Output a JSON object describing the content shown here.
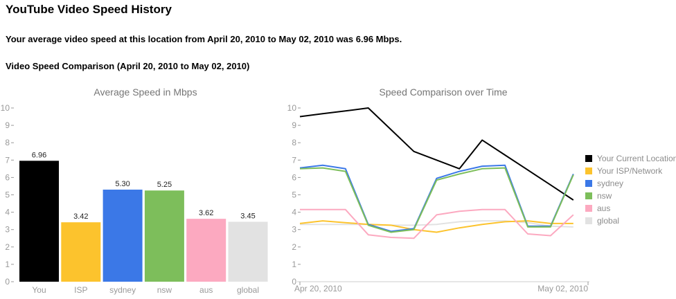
{
  "header": {
    "title": "YouTube Video Speed History",
    "summary": "Your average video speed at this location from April 20, 2010 to May 02, 2010 was 6.96 Mbps.",
    "section_heading": "Video Speed Comparison (April 20, 2010 to May 02, 2010)"
  },
  "colors": {
    "you": "#000000",
    "isp": "#FCC32D",
    "sydney": "#3B78E7",
    "nsw": "#7DBE5B",
    "aus": "#FCA9C0",
    "global": "#E2E2E2",
    "axis_text": "#999999",
    "axis_line": "#CCCCCC",
    "chart_title_text": "#757575",
    "legend_text": "#8C8C8C",
    "bar_value_text": "#222222"
  },
  "chart_data": [
    {
      "type": "bar",
      "title": "Average Speed in Mbps",
      "categories": [
        "You",
        "ISP",
        "sydney",
        "nsw",
        "aus",
        "global"
      ],
      "values": [
        6.96,
        3.42,
        5.3,
        5.25,
        3.62,
        3.45
      ],
      "data_labels": [
        "6.96",
        "3.42",
        "5.30",
        "5.25",
        "3.62",
        "3.45"
      ],
      "bar_colors": [
        "#000000",
        "#FCC32D",
        "#3B78E7",
        "#7DBE5B",
        "#FCA9C0",
        "#E2E2E2"
      ],
      "xlabel": "",
      "ylabel": "",
      "ylim": [
        0,
        10
      ],
      "ytick_interval": 1,
      "grid": false
    },
    {
      "type": "line",
      "title": "Speed Comparison over Time",
      "x_axis_labels": [
        "Apr 20, 2010",
        "May 02, 2010"
      ],
      "x_points": 13,
      "ylim": [
        0,
        10
      ],
      "ytick_interval": 1,
      "grid": false,
      "legend_position": "right",
      "series": [
        {
          "name": "Your Current Location",
          "color": "#000000",
          "values": [
            9.5,
            9.67,
            9.83,
            10.0,
            8.75,
            7.5,
            7.0,
            6.5,
            8.15,
            7.29,
            6.43,
            5.57,
            4.7
          ]
        },
        {
          "name": "Your ISP/Network",
          "color": "#FCC32D",
          "values": [
            3.35,
            3.5,
            3.4,
            3.3,
            3.25,
            3.0,
            2.85,
            3.1,
            3.3,
            3.45,
            3.5,
            3.35,
            3.35
          ]
        },
        {
          "name": "sydney",
          "color": "#3B78E7",
          "values": [
            6.55,
            6.7,
            6.5,
            3.3,
            2.9,
            3.05,
            5.95,
            6.35,
            6.65,
            6.7,
            3.2,
            3.2,
            6.2
          ]
        },
        {
          "name": "nsw",
          "color": "#7DBE5B",
          "values": [
            6.5,
            6.55,
            6.35,
            3.25,
            2.85,
            3.0,
            5.85,
            6.2,
            6.5,
            6.55,
            3.15,
            3.15,
            6.15
          ]
        },
        {
          "name": "aus",
          "color": "#FCA9C0",
          "values": [
            4.15,
            4.15,
            4.15,
            2.7,
            2.55,
            2.5,
            3.85,
            4.05,
            4.15,
            4.15,
            2.75,
            2.65,
            3.85
          ]
        },
        {
          "name": "global",
          "color": "#E2E2E2",
          "values": [
            3.3,
            3.3,
            3.3,
            3.3,
            3.25,
            3.25,
            3.3,
            3.45,
            3.5,
            3.5,
            3.4,
            3.2,
            3.15
          ]
        }
      ]
    }
  ]
}
